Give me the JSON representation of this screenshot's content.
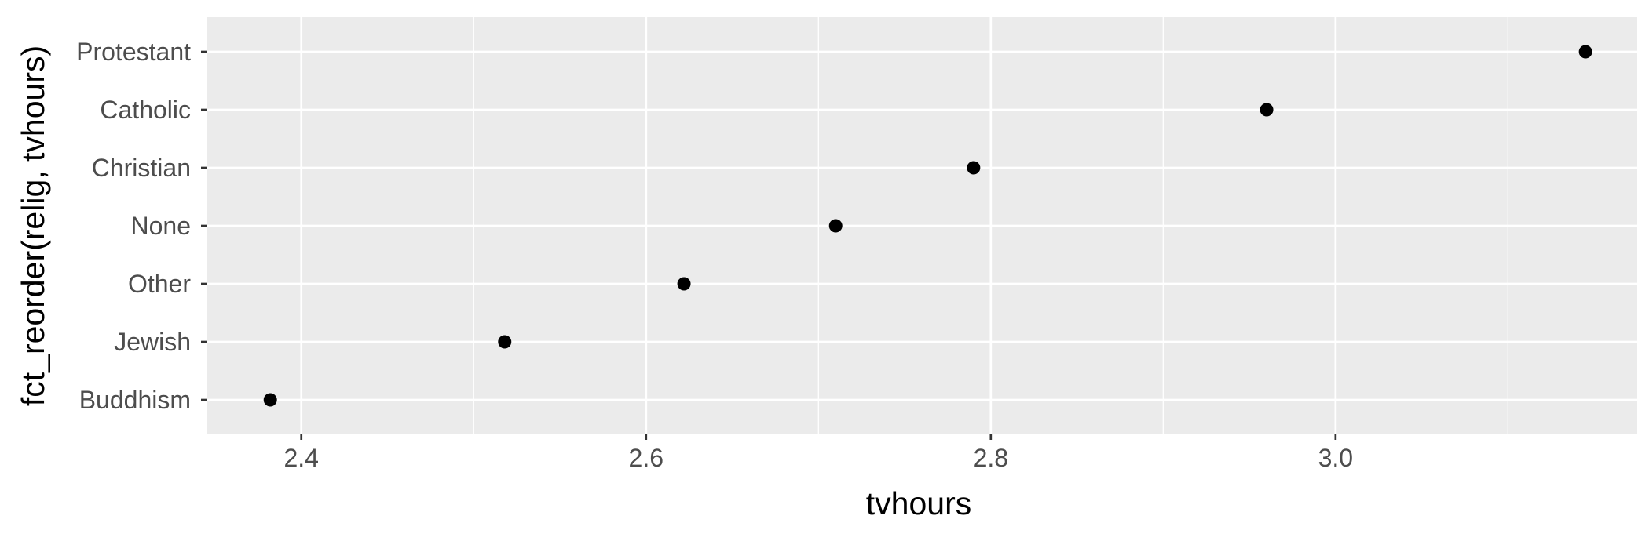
{
  "chart_data": {
    "type": "scatter",
    "title": "",
    "xlabel": "tvhours",
    "ylabel": "fct_reorder(relig, tvhours)",
    "xlim": [
      2.345,
      3.175
    ],
    "x_ticks": [
      {
        "value": 2.4,
        "label": "2.4"
      },
      {
        "value": 2.6,
        "label": "2.6"
      },
      {
        "value": 2.8,
        "label": "2.8"
      },
      {
        "value": 3.0,
        "label": "3.0"
      }
    ],
    "x_minor_ticks": [
      2.5,
      2.7,
      2.9,
      3.1
    ],
    "categories": [
      "Buddhism",
      "Jewish",
      "Other",
      "None",
      "Christian",
      "Catholic",
      "Protestant"
    ],
    "values": [
      2.382,
      2.518,
      2.622,
      2.71,
      2.79,
      2.96,
      3.145
    ],
    "grid": true,
    "colors": {
      "panel": "#ebebeb",
      "grid": "#ffffff",
      "point": "#000000",
      "tick": "#333333"
    }
  }
}
